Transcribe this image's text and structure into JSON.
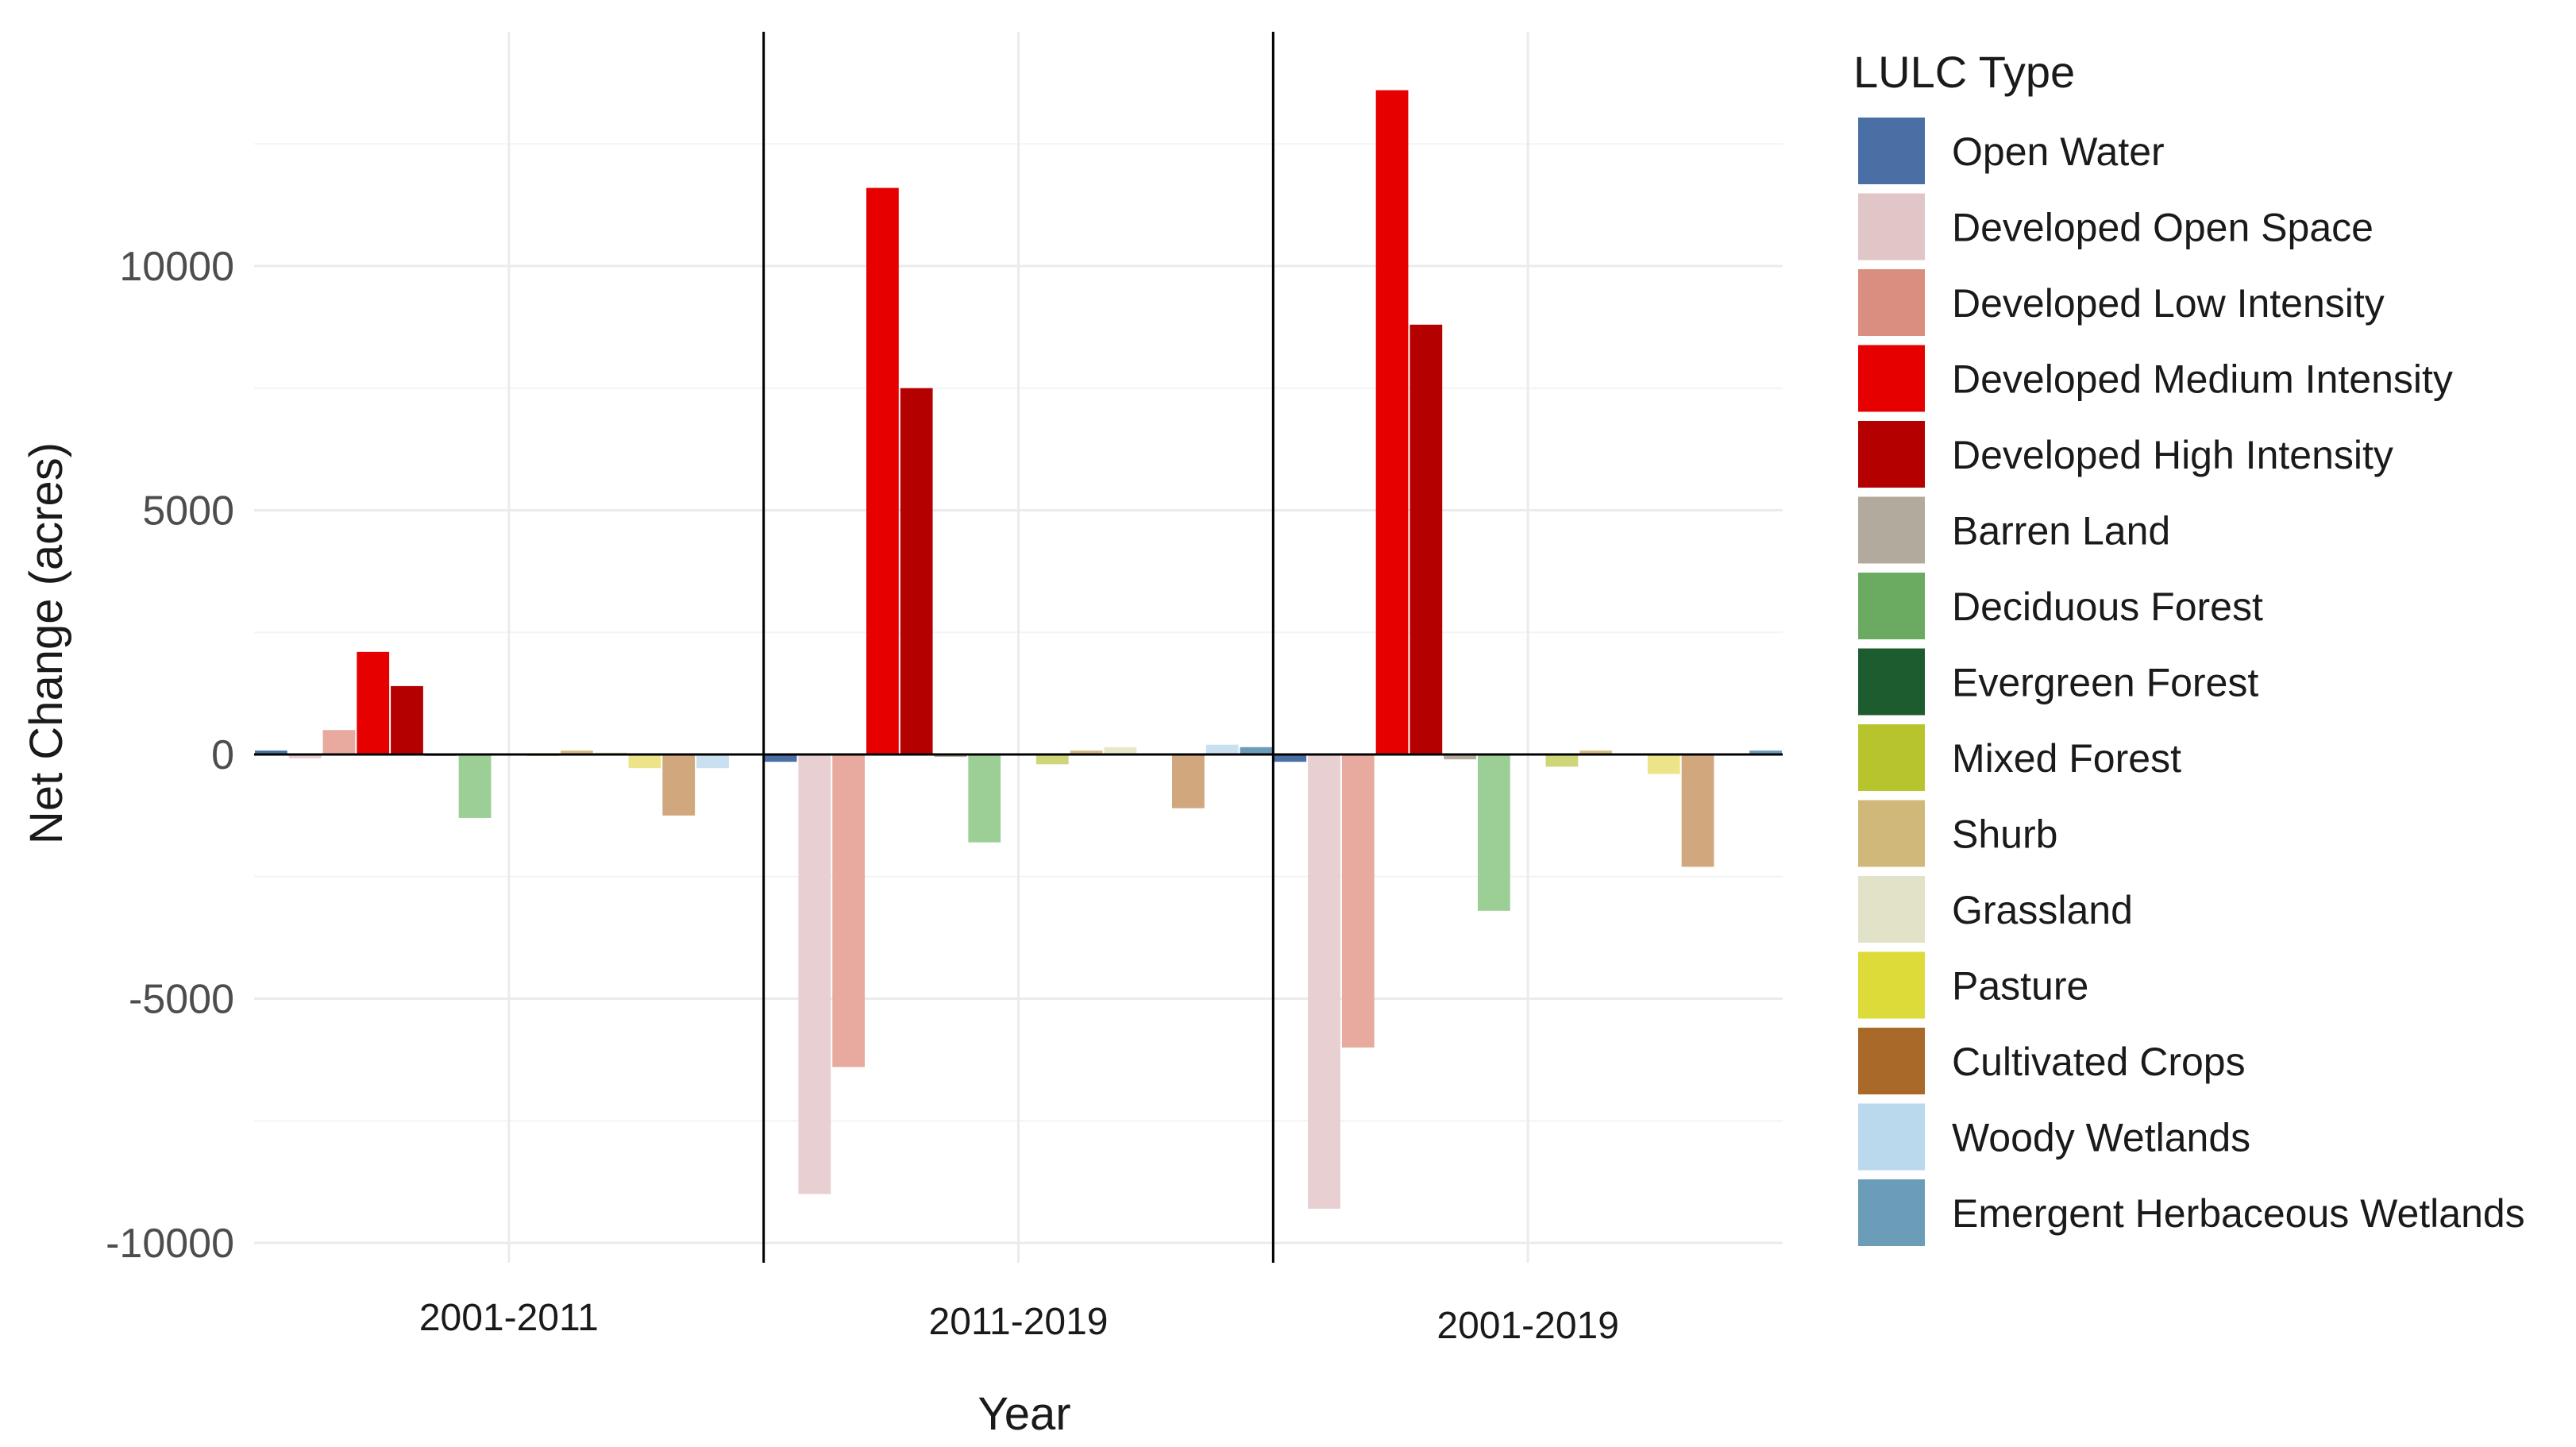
{
  "chart_data": {
    "type": "bar",
    "title": "",
    "xlabel": "Year",
    "ylabel": "Net Change (acres)",
    "ylim": [
      -10200,
      14000
    ],
    "yticks": [
      -10000,
      -5000,
      0,
      5000,
      10000
    ],
    "yticks_labels": [
      "-10000",
      "-5000",
      "0",
      "5000",
      "10000"
    ],
    "grid": true,
    "legend_title": "LULC Type",
    "legend_position": "right",
    "categories": [
      "2001-2011",
      "2011-2019",
      "2001-2019"
    ],
    "series": [
      {
        "name": "Open Water",
        "color": "#4a6fa5",
        "values": [
          80,
          -150,
          -150
        ]
      },
      {
        "name": "Developed Open Space",
        "color": "#e8cfd1",
        "values": [
          -80,
          -9000,
          -9300
        ]
      },
      {
        "name": "Developed Low Intensity",
        "color": "#e8a99e",
        "values": [
          500,
          -6400,
          -6000
        ]
      },
      {
        "name": "Developed Medium Intensity",
        "color": "#e60000",
        "values": [
          2100,
          11600,
          13600
        ]
      },
      {
        "name": "Developed High Intensity",
        "color": "#b50000",
        "values": [
          1400,
          7500,
          8800
        ]
      },
      {
        "name": "Barren Land",
        "color": "#b3aa9e",
        "values": [
          -30,
          -50,
          -100
        ]
      },
      {
        "name": "Deciduous Forest",
        "color": "#9ccf96",
        "values": [
          -1300,
          -1800,
          -3200
        ]
      },
      {
        "name": "Evergreen Forest",
        "color": "#1c5c2e",
        "values": [
          0,
          0,
          0
        ]
      },
      {
        "name": "Mixed Forest",
        "color": "#cfd67a",
        "values": [
          -20,
          -200,
          -250
        ]
      },
      {
        "name": "Shurb",
        "color": "#d6bb82",
        "values": [
          80,
          80,
          80
        ]
      },
      {
        "name": "Grassland",
        "color": "#e6e8c7",
        "values": [
          40,
          150,
          0
        ]
      },
      {
        "name": "Pasture",
        "color": "#ede48a",
        "values": [
          -280,
          0,
          -400
        ]
      },
      {
        "name": "Cultivated Crops",
        "color": "#d1a77e",
        "values": [
          -1250,
          -1100,
          -2300
        ]
      },
      {
        "name": "Woody Wetlands",
        "color": "#c8e0ef",
        "values": [
          -280,
          200,
          0
        ]
      },
      {
        "name": "Emergent Herbaceous Wetlands",
        "color": "#6b9db8",
        "values": [
          0,
          150,
          80
        ]
      }
    ]
  },
  "legend_colors": [
    "#4a6fa5",
    "#e0c6c7",
    "#d98e7f",
    "#e60000",
    "#b50000",
    "#b3aa9e",
    "#6aab61",
    "#1c5c2e",
    "#b8c42e",
    "#cfb879",
    "#e1e2c8",
    "#dddb3a",
    "#a96a29",
    "#bad9ec",
    "#6b9db8"
  ]
}
